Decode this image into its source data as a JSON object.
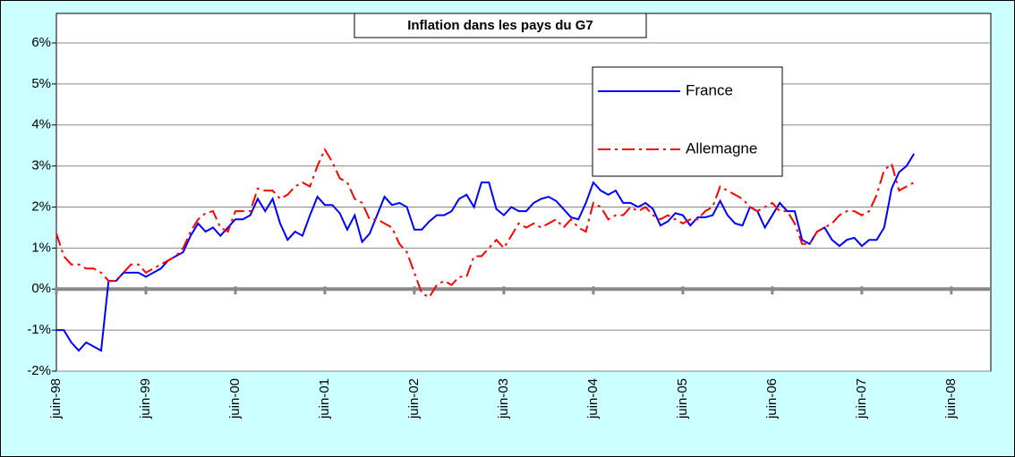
{
  "chart_data": {
    "type": "line",
    "title": "Inflation dans les pays du G7",
    "categories": [
      "juin-98",
      null,
      null,
      null,
      null,
      null,
      null,
      null,
      null,
      null,
      null,
      null,
      "juin-99",
      null,
      null,
      null,
      null,
      null,
      null,
      null,
      null,
      null,
      null,
      null,
      "juin-00",
      null,
      null,
      null,
      null,
      null,
      null,
      null,
      null,
      null,
      null,
      null,
      "juin-01",
      null,
      null,
      null,
      null,
      null,
      null,
      null,
      null,
      null,
      null,
      null,
      "juin-02",
      null,
      null,
      null,
      null,
      null,
      null,
      null,
      null,
      null,
      null,
      null,
      "juin-03",
      null,
      null,
      null,
      null,
      null,
      null,
      null,
      null,
      null,
      null,
      null,
      "juin-04",
      null,
      null,
      null,
      null,
      null,
      null,
      null,
      null,
      null,
      null,
      null,
      "juin-05",
      null,
      null,
      null,
      null,
      null,
      null,
      null,
      null,
      null,
      null,
      null,
      "juin-06",
      null,
      null,
      null,
      null,
      null,
      null,
      null,
      null,
      null,
      null,
      null,
      "juin-07",
      null,
      null,
      null,
      null,
      null,
      null,
      null,
      null,
      null,
      null,
      null,
      "juin-08",
      null,
      null,
      null,
      null,
      null
    ],
    "series": [
      {
        "name": "France",
        "color": "#0000ff",
        "values": [
          -1.0,
          -1.0,
          -1.3,
          -1.5,
          -1.3,
          -1.4,
          -1.5,
          0.2,
          0.2,
          0.4,
          0.4,
          0.4,
          0.3,
          0.4,
          0.5,
          0.7,
          0.8,
          0.9,
          1.3,
          1.6,
          1.4,
          1.5,
          1.3,
          1.5,
          1.7,
          1.7,
          1.8,
          2.2,
          1.9,
          2.2,
          1.6,
          1.2,
          1.4,
          1.3,
          1.8,
          2.25,
          2.05,
          2.05,
          1.85,
          1.45,
          1.8,
          1.15,
          1.35,
          1.8,
          2.25,
          2.05,
          2.1,
          2.0,
          1.45,
          1.45,
          1.65,
          1.8,
          1.8,
          1.9,
          2.2,
          2.3,
          2.0,
          2.6,
          2.6,
          1.95,
          1.8,
          2.0,
          1.9,
          1.9,
          2.1,
          2.2,
          2.25,
          2.15,
          1.95,
          1.75,
          1.7,
          2.1,
          2.6,
          2.4,
          2.3,
          2.4,
          2.1,
          2.1,
          2.0,
          2.1,
          1.95,
          1.55,
          1.65,
          1.85,
          1.8,
          1.55,
          1.75,
          1.75,
          1.8,
          2.15,
          1.8,
          1.6,
          1.55,
          2.0,
          1.9,
          1.5,
          1.8,
          2.1,
          1.9,
          1.9,
          1.2,
          1.1,
          1.4,
          1.5,
          1.2,
          1.05,
          1.2,
          1.25,
          1.05,
          1.2,
          1.2,
          1.5,
          2.45,
          2.85,
          3.0,
          3.3,
          null,
          null,
          null,
          null,
          null,
          null,
          null,
          null,
          null,
          null
        ]
      },
      {
        "name": "Allemagne",
        "color": "#ff0000",
        "values": [
          1.35,
          0.8,
          0.6,
          0.6,
          0.5,
          0.5,
          0.4,
          0.2,
          0.2,
          0.4,
          0.6,
          0.6,
          0.4,
          0.5,
          0.6,
          0.7,
          0.8,
          1.0,
          1.4,
          1.7,
          1.85,
          1.9,
          1.5,
          1.4,
          1.9,
          1.9,
          1.9,
          2.45,
          2.4,
          2.4,
          2.2,
          2.3,
          2.5,
          2.6,
          2.5,
          3.0,
          3.4,
          3.1,
          2.7,
          2.6,
          2.2,
          2.1,
          1.7,
          1.7,
          1.6,
          1.5,
          1.1,
          0.9,
          0.4,
          -0.1,
          -0.2,
          0.1,
          0.2,
          0.1,
          0.3,
          0.3,
          0.8,
          0.8,
          1.0,
          1.2,
          1.0,
          1.3,
          1.6,
          1.5,
          1.6,
          1.5,
          1.6,
          1.7,
          1.5,
          1.7,
          1.5,
          1.4,
          2.1,
          2.0,
          1.7,
          1.8,
          1.8,
          2.0,
          1.9,
          2.0,
          1.8,
          1.7,
          1.8,
          1.7,
          1.6,
          1.7,
          1.7,
          1.9,
          2.0,
          2.5,
          2.4,
          2.3,
          2.2,
          2.0,
          1.9,
          2.0,
          2.1,
          1.9,
          1.9,
          1.6,
          1.1,
          1.1,
          1.4,
          1.5,
          1.6,
          1.8,
          1.9,
          1.9,
          1.8,
          1.9,
          2.3,
          2.9,
          3.05,
          2.4,
          2.5,
          2.6,
          null,
          null,
          null,
          null,
          null,
          null,
          null,
          null,
          null,
          null
        ]
      }
    ],
    "ylim": [
      -2,
      6
    ],
    "yticks": [
      {
        "value": -2,
        "label": "-2%"
      },
      {
        "value": -1,
        "label": "-1%"
      },
      {
        "value": 0,
        "label": "0%"
      },
      {
        "value": 1,
        "label": "1%"
      },
      {
        "value": 2,
        "label": "2%"
      },
      {
        "value": 3,
        "label": "3%"
      },
      {
        "value": 4,
        "label": "4%"
      },
      {
        "value": 5,
        "label": "5%"
      },
      {
        "value": 6,
        "label": "6%"
      }
    ],
    "grid": true,
    "legend": "upper-right"
  }
}
